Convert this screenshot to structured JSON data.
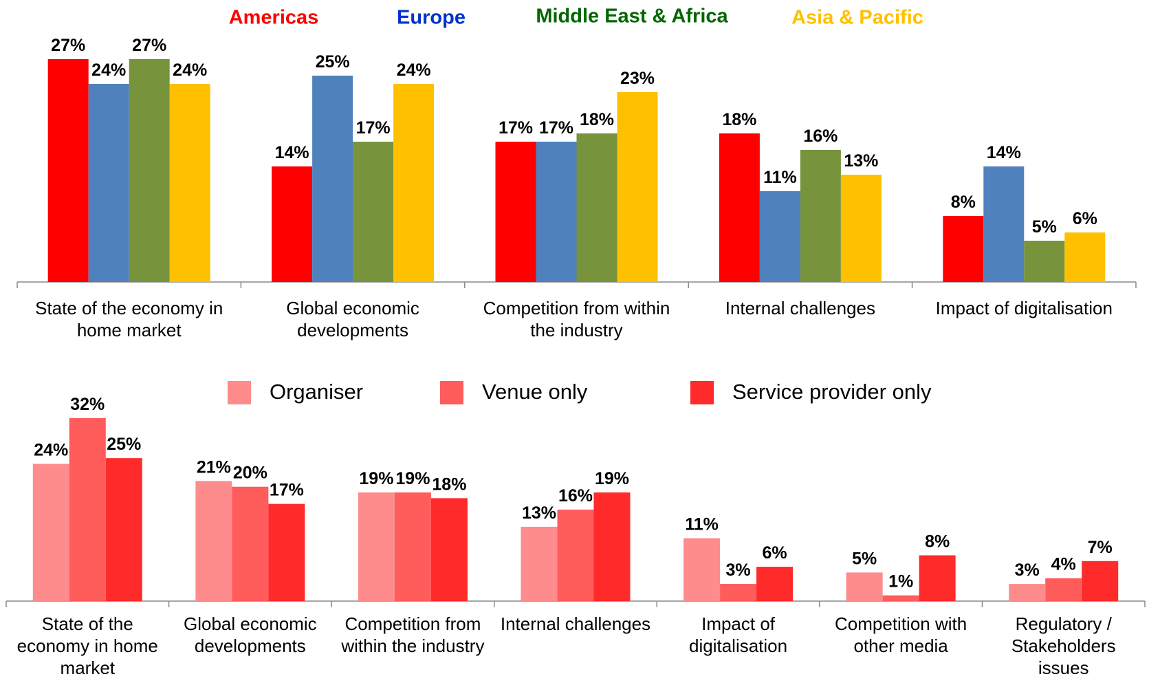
{
  "chart_data": [
    {
      "type": "bar",
      "categories": [
        "State of the economy in home market",
        "Global economic developments",
        "Competition from within the industry",
        "Internal challenges",
        "Impact of digitalisation"
      ],
      "series": [
        {
          "name": "Americas",
          "color": "#ff0000",
          "label_color": "#ff0000",
          "values": [
            27,
            14,
            17,
            18,
            8
          ],
          "value_labels": [
            "27%",
            "14%",
            "17%",
            "18%",
            "8%"
          ]
        },
        {
          "name": "Europe",
          "color": "#4f81bd",
          "label_color": "#0033cc",
          "values": [
            24,
            25,
            17,
            11,
            14
          ],
          "value_labels": [
            "24%",
            "25%",
            "17%",
            "11%",
            "14%"
          ]
        },
        {
          "name": "Middle East & Africa",
          "color": "#77933c",
          "label_color": "#006600",
          "values": [
            27,
            17,
            18,
            16,
            5
          ],
          "value_labels": [
            "27%",
            "17%",
            "18%",
            "16%",
            "5%"
          ]
        },
        {
          "name": "Asia & Pacific",
          "color": "#ffc000",
          "label_color": "#ffc000",
          "values": [
            24,
            24,
            23,
            13,
            6
          ],
          "value_labels": [
            "24%",
            "24%",
            "23%",
            "13%",
            "6%"
          ]
        }
      ],
      "ylim": [
        0,
        30
      ],
      "legend": "top"
    },
    {
      "type": "bar",
      "categories": [
        "State of the economy in home market",
        "Global economic developments",
        "Competition from within the industry",
        "Internal challenges",
        "Impact of digitalisation",
        "Competition with other media",
        "Regulatory / Stakeholders issues"
      ],
      "series": [
        {
          "name": "Organiser",
          "color": "#ff8c8c",
          "values": [
            24,
            21,
            19,
            13,
            11,
            5,
            3
          ],
          "value_labels": [
            "24%",
            "21%",
            "19%",
            "13%",
            "11%",
            "5%",
            "3%"
          ]
        },
        {
          "name": "Venue only",
          "color": "#ff5c5c",
          "values": [
            32,
            20,
            19,
            16,
            3,
            1,
            4
          ],
          "value_labels": [
            "32%",
            "20%",
            "19%",
            "16%",
            "3%",
            "1%",
            "4%"
          ]
        },
        {
          "name": "Service provider only",
          "color": "#ff2a2a",
          "values": [
            25,
            17,
            18,
            19,
            6,
            8,
            7
          ],
          "value_labels": [
            "25%",
            "17%",
            "18%",
            "19%",
            "6%",
            "8%",
            "7%"
          ]
        }
      ],
      "ylim": [
        0,
        35
      ],
      "legend": "top"
    }
  ]
}
